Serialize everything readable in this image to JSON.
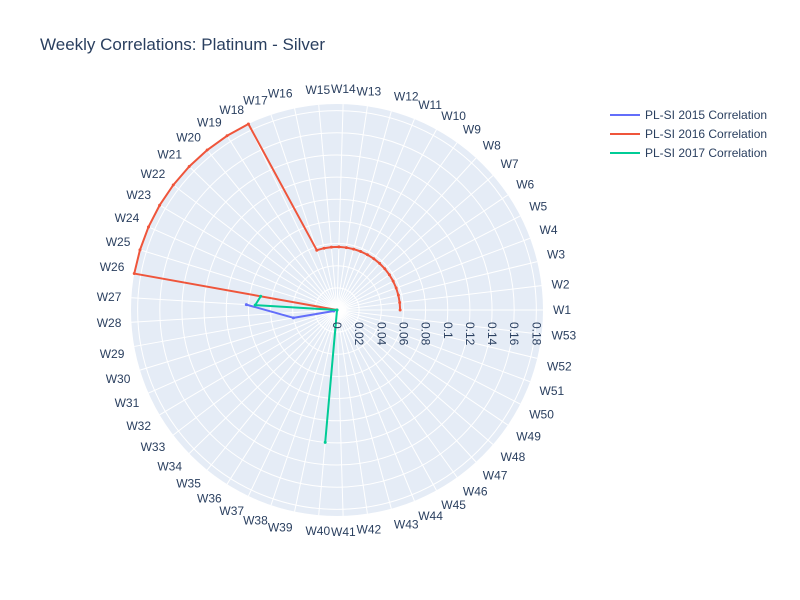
{
  "chart_data": {
    "type": "polar-line",
    "title": "Weekly Correlations: Platinum - Silver",
    "angular_categories": [
      "W1",
      "W2",
      "W3",
      "W4",
      "W5",
      "W6",
      "W7",
      "W8",
      "W9",
      "W10",
      "W11",
      "W12",
      "W13",
      "W14",
      "W15",
      "W16",
      "W17",
      "W18",
      "W19",
      "W20",
      "W21",
      "W22",
      "W23",
      "W24",
      "W25",
      "W26",
      "W27",
      "W28",
      "W29",
      "W30",
      "W31",
      "W32",
      "W33",
      "W34",
      "W35",
      "W36",
      "W37",
      "W38",
      "W39",
      "W40",
      "W41",
      "W42",
      "W43",
      "W44",
      "W45",
      "W46",
      "W47",
      "W48",
      "W49",
      "W50",
      "W51",
      "W52",
      "W53"
    ],
    "angular_direction": "counterclockwise",
    "angular_start": "W1 at 0° (right)",
    "radial_ticks": [
      0,
      0.02,
      0.04,
      0.06,
      0.08,
      0.1,
      0.12,
      0.14,
      0.16,
      0.18
    ],
    "radial_tick_labels": [
      "0",
      "0.02",
      "0.04",
      "0.06",
      "0.08",
      "0.1",
      "0.12",
      "0.14",
      "0.16",
      "0.18"
    ],
    "radial_range": [
      0,
      0.186
    ],
    "legend_position": "top-right",
    "series": [
      {
        "name": "PL-SI 2015 Correlation",
        "color": "#636efa",
        "points": [
          {
            "w": "W27",
            "r": 0.082
          },
          {
            "w": "W29",
            "r": 0.04
          },
          {
            "w": "W30",
            "r": 0.003
          }
        ]
      },
      {
        "name": "PL-SI 2016 Correlation",
        "color": "#ef553b",
        "points": [
          {
            "w": "W1",
            "r": 0.057
          },
          {
            "w": "W2",
            "r": 0.057
          },
          {
            "w": "W3",
            "r": 0.057
          },
          {
            "w": "W4",
            "r": 0.057
          },
          {
            "w": "W5",
            "r": 0.057
          },
          {
            "w": "W6",
            "r": 0.057
          },
          {
            "w": "W7",
            "r": 0.057
          },
          {
            "w": "W8",
            "r": 0.057
          },
          {
            "w": "W9",
            "r": 0.057
          },
          {
            "w": "W10",
            "r": 0.057
          },
          {
            "w": "W11",
            "r": 0.057
          },
          {
            "w": "W12",
            "r": 0.057
          },
          {
            "w": "W13",
            "r": 0.057
          },
          {
            "w": "W14",
            "r": 0.057
          },
          {
            "w": "W15",
            "r": 0.057
          },
          {
            "w": "W16",
            "r": 0.057
          },
          {
            "w": "W17",
            "r": 0.057
          },
          {
            "w": "W18",
            "r": 0.186
          },
          {
            "w": "W19",
            "r": 0.186
          },
          {
            "w": "W20",
            "r": 0.186
          },
          {
            "w": "W21",
            "r": 0.186
          },
          {
            "w": "W22",
            "r": 0.186
          },
          {
            "w": "W23",
            "r": 0.186
          },
          {
            "w": "W24",
            "r": 0.186
          },
          {
            "w": "W25",
            "r": 0.186
          },
          {
            "w": "W26",
            "r": 0.186
          },
          {
            "w": "W27",
            "r": 0.0
          }
        ]
      },
      {
        "name": "PL-SI 2017 Correlation",
        "color": "#00cc96",
        "points": [
          {
            "w": "W26",
            "r": 0.07
          },
          {
            "w": "W27",
            "r": 0.074
          },
          {
            "w": "W28",
            "r": 0.0
          },
          {
            "w": "W40",
            "r": 0.12
          },
          {
            "w": "W41",
            "r": 0.0
          }
        ]
      }
    ]
  }
}
